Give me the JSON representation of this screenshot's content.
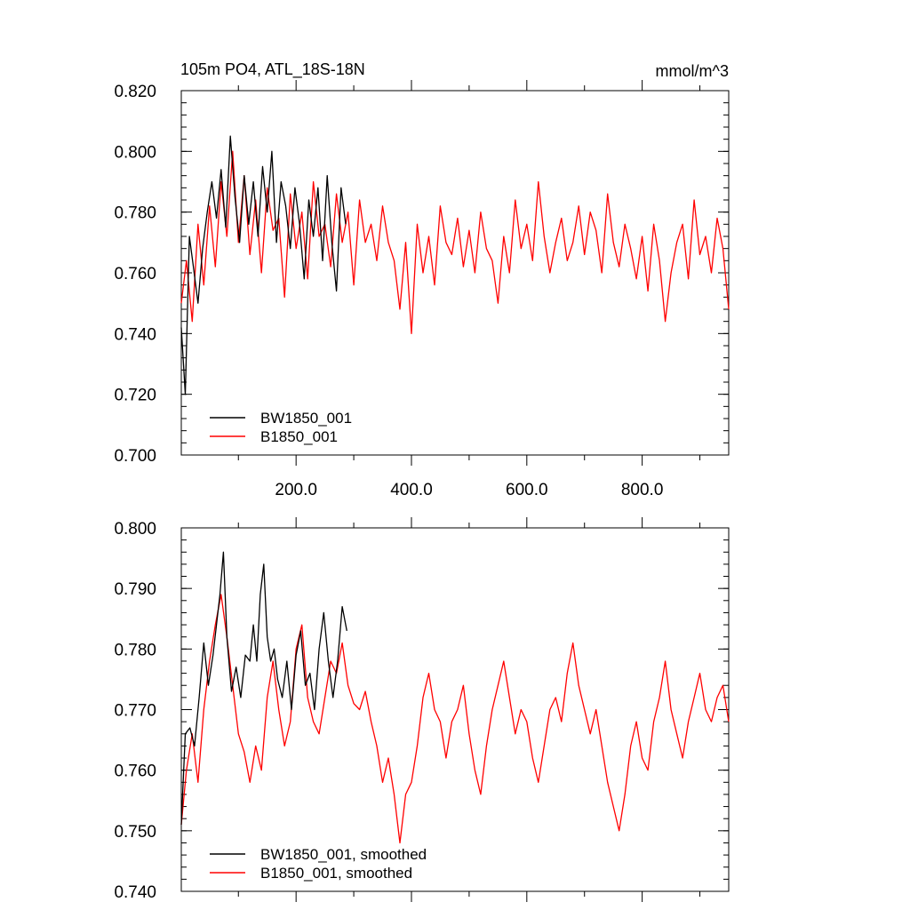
{
  "figure": {
    "title_left": "105m PO4, ATL_18S-18N",
    "title_right": "mmol/m^3"
  },
  "chart_data": [
    {
      "type": "line",
      "panel": "top",
      "title": "105m PO4, ATL_18S-18N",
      "units": "mmol/m^3",
      "xlim": [
        1,
        950
      ],
      "ylim": [
        0.7,
        0.82
      ],
      "x_ticks": [
        200,
        400,
        600,
        800
      ],
      "x_tick_labels": [
        "200.0",
        "400.0",
        "600.0",
        "800.0"
      ],
      "y_ticks": [
        0.7,
        0.72,
        0.74,
        0.76,
        0.78,
        0.8,
        0.82
      ],
      "y_tick_labels": [
        "0.700",
        "0.720",
        "0.740",
        "0.760",
        "0.780",
        "0.800",
        "0.820"
      ],
      "grid": false,
      "legend_position": "bottom-left",
      "series": [
        {
          "name": "BW1850_001",
          "color": "#000000",
          "x": [
            1,
            8,
            15,
            22,
            30,
            38,
            46,
            54,
            62,
            70,
            78,
            86,
            94,
            102,
            110,
            118,
            126,
            134,
            142,
            150,
            158,
            166,
            174,
            182,
            190,
            198,
            206,
            214,
            222,
            230,
            238,
            246,
            254,
            262,
            270,
            278,
            286
          ],
          "values": [
            0.742,
            0.72,
            0.772,
            0.762,
            0.75,
            0.768,
            0.78,
            0.79,
            0.778,
            0.794,
            0.775,
            0.805,
            0.785,
            0.77,
            0.792,
            0.776,
            0.79,
            0.772,
            0.795,
            0.78,
            0.8,
            0.77,
            0.79,
            0.782,
            0.768,
            0.788,
            0.776,
            0.758,
            0.784,
            0.772,
            0.788,
            0.764,
            0.792,
            0.77,
            0.754,
            0.788,
            0.776
          ]
        },
        {
          "name": "B1850_001",
          "color": "#ff0000",
          "x": [
            1,
            10,
            20,
            30,
            40,
            50,
            60,
            70,
            80,
            90,
            100,
            110,
            120,
            130,
            140,
            150,
            160,
            170,
            180,
            190,
            200,
            210,
            220,
            230,
            240,
            250,
            260,
            270,
            280,
            290,
            300,
            310,
            320,
            330,
            340,
            350,
            360,
            370,
            380,
            390,
            400,
            410,
            420,
            430,
            440,
            450,
            460,
            470,
            480,
            490,
            500,
            510,
            520,
            530,
            540,
            550,
            560,
            570,
            580,
            590,
            600,
            610,
            620,
            630,
            640,
            650,
            660,
            670,
            680,
            690,
            700,
            710,
            720,
            730,
            740,
            750,
            760,
            770,
            780,
            790,
            800,
            810,
            820,
            830,
            840,
            850,
            860,
            870,
            880,
            890,
            900,
            910,
            920,
            930,
            940,
            950
          ],
          "values": [
            0.75,
            0.764,
            0.744,
            0.776,
            0.756,
            0.782,
            0.762,
            0.79,
            0.772,
            0.8,
            0.77,
            0.792,
            0.766,
            0.784,
            0.76,
            0.788,
            0.774,
            0.778,
            0.752,
            0.786,
            0.768,
            0.78,
            0.758,
            0.79,
            0.772,
            0.776,
            0.762,
            0.786,
            0.77,
            0.78,
            0.756,
            0.784,
            0.77,
            0.776,
            0.764,
            0.782,
            0.77,
            0.764,
            0.748,
            0.77,
            0.74,
            0.776,
            0.76,
            0.772,
            0.756,
            0.782,
            0.77,
            0.766,
            0.778,
            0.762,
            0.774,
            0.76,
            0.78,
            0.768,
            0.764,
            0.75,
            0.772,
            0.76,
            0.784,
            0.768,
            0.776,
            0.764,
            0.79,
            0.772,
            0.76,
            0.77,
            0.778,
            0.764,
            0.77,
            0.782,
            0.766,
            0.78,
            0.774,
            0.76,
            0.786,
            0.77,
            0.762,
            0.776,
            0.768,
            0.758,
            0.772,
            0.754,
            0.776,
            0.764,
            0.744,
            0.76,
            0.77,
            0.776,
            0.758,
            0.784,
            0.766,
            0.772,
            0.76,
            0.778,
            0.768,
            0.748
          ]
        }
      ]
    },
    {
      "type": "line",
      "panel": "bottom",
      "xlim": [
        1,
        950
      ],
      "ylim": [
        0.74,
        0.8
      ],
      "y_ticks": [
        0.74,
        0.75,
        0.76,
        0.77,
        0.78,
        0.79,
        0.8
      ],
      "y_tick_labels": [
        "0.740",
        "0.750",
        "0.760",
        "0.770",
        "0.780",
        "0.790",
        "0.800"
      ],
      "x_ticks": [
        200,
        400,
        600,
        800
      ],
      "x_tick_labels": [],
      "grid": false,
      "legend_position": "bottom-left",
      "series": [
        {
          "name": "BW1850_001, smoothed",
          "color": "#000000",
          "x": [
            1,
            8,
            16,
            24,
            32,
            40,
            48,
            56,
            62,
            68,
            74,
            80,
            88,
            96,
            104,
            112,
            120,
            126,
            132,
            138,
            144,
            150,
            156,
            162,
            168,
            176,
            184,
            192,
            200,
            208,
            216,
            224,
            232,
            240,
            248,
            256,
            264,
            272,
            280,
            288
          ],
          "values": [
            0.751,
            0.766,
            0.767,
            0.764,
            0.772,
            0.781,
            0.774,
            0.779,
            0.784,
            0.789,
            0.796,
            0.782,
            0.773,
            0.777,
            0.772,
            0.779,
            0.778,
            0.784,
            0.778,
            0.789,
            0.794,
            0.782,
            0.778,
            0.78,
            0.775,
            0.772,
            0.778,
            0.77,
            0.779,
            0.783,
            0.774,
            0.776,
            0.77,
            0.78,
            0.786,
            0.778,
            0.772,
            0.778,
            0.787,
            0.783
          ]
        },
        {
          "name": "B1850_001, smoothed",
          "color": "#ff0000",
          "x": [
            1,
            10,
            20,
            30,
            40,
            50,
            60,
            70,
            80,
            90,
            100,
            110,
            120,
            130,
            140,
            150,
            160,
            170,
            180,
            190,
            200,
            210,
            220,
            230,
            240,
            250,
            260,
            270,
            280,
            290,
            300,
            310,
            320,
            330,
            340,
            350,
            360,
            370,
            380,
            390,
            400,
            410,
            420,
            430,
            440,
            450,
            460,
            470,
            480,
            490,
            500,
            510,
            520,
            530,
            540,
            550,
            560,
            570,
            580,
            590,
            600,
            610,
            620,
            630,
            640,
            650,
            660,
            670,
            680,
            690,
            700,
            710,
            720,
            730,
            740,
            750,
            760,
            770,
            780,
            790,
            800,
            810,
            820,
            830,
            840,
            850,
            860,
            870,
            880,
            890,
            900,
            910,
            920,
            930,
            940,
            950
          ],
          "values": [
            0.751,
            0.76,
            0.766,
            0.758,
            0.77,
            0.778,
            0.784,
            0.789,
            0.782,
            0.774,
            0.766,
            0.763,
            0.758,
            0.764,
            0.76,
            0.772,
            0.778,
            0.77,
            0.764,
            0.768,
            0.78,
            0.784,
            0.772,
            0.768,
            0.766,
            0.772,
            0.778,
            0.776,
            0.781,
            0.774,
            0.771,
            0.77,
            0.773,
            0.768,
            0.764,
            0.758,
            0.762,
            0.756,
            0.748,
            0.756,
            0.758,
            0.764,
            0.772,
            0.776,
            0.77,
            0.768,
            0.762,
            0.768,
            0.77,
            0.774,
            0.766,
            0.76,
            0.756,
            0.764,
            0.77,
            0.774,
            0.778,
            0.772,
            0.766,
            0.77,
            0.768,
            0.762,
            0.758,
            0.764,
            0.77,
            0.772,
            0.768,
            0.776,
            0.781,
            0.774,
            0.77,
            0.766,
            0.77,
            0.764,
            0.758,
            0.754,
            0.75,
            0.756,
            0.764,
            0.768,
            0.762,
            0.76,
            0.768,
            0.772,
            0.778,
            0.77,
            0.766,
            0.762,
            0.768,
            0.772,
            0.776,
            0.77,
            0.768,
            0.772,
            0.774,
            0.768
          ]
        }
      ]
    }
  ]
}
